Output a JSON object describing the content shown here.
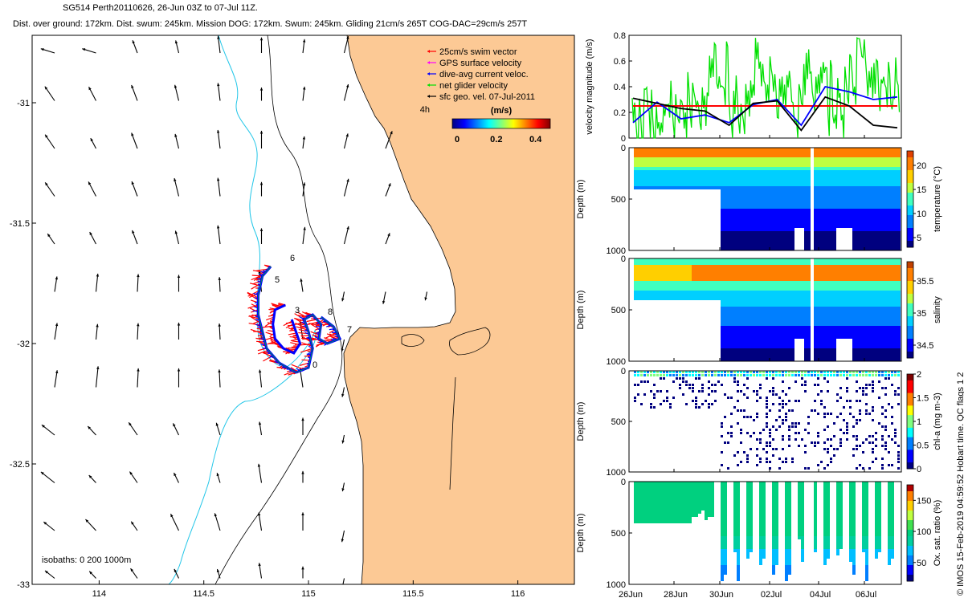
{
  "header": {
    "line1": "SG514 Perth20110626, 26-Jun 03Z to 07-Jul 11Z.",
    "line2": "Dist. over ground: 172km. Dist. swum: 245km. Mission DOG: 172km. Swum: 245km. Gliding 21cm/s 265T COG-DAC=29cm/s 257T"
  },
  "side_credit": "© IMOS 15-Feb-2019 04:59:52 Hobart time. QC flags 1  2",
  "colors": {
    "land": "#fcc995",
    "isobath_shallow": "#000000",
    "isobath_deep": "#22c6e8",
    "swim_vector": "#ff0000",
    "gps_velocity": "#ff00ff",
    "dive_avg": "#0000ff",
    "net_velocity": "#00e000",
    "sfc_geo": "#000000"
  },
  "chart_data": [
    {
      "type": "scatter",
      "panel": "track-map",
      "x_ticks": [
        "114",
        "114.5",
        "115",
        "115.5",
        "116"
      ],
      "y_ticks": [
        "-31",
        "-31.5",
        "-32",
        "-32.5",
        "-33"
      ],
      "xlim": [
        113.68,
        116.27
      ],
      "ylim": [
        -33.0,
        -30.72
      ],
      "legend": [
        {
          "label": "25cm/s swim vector",
          "color": "#ff0000"
        },
        {
          "label": "GPS surface velocity",
          "color": "#ff00ff"
        },
        {
          "label": "dive-avg current veloc.",
          "color": "#0000ff"
        },
        {
          "label": "net glider velocity",
          "color": "#00e000"
        },
        {
          "label": "sfc geo. vel. 07-Jul-2011",
          "color": "#000000"
        }
      ],
      "legend_placement": "top-right",
      "vector_scale_label": "4h",
      "colorbar": {
        "title": "(m/s)",
        "ticks": [
          "0",
          "0.2",
          "0.4"
        ],
        "range": [
          0,
          0.5
        ]
      },
      "isobaths_label": "isobaths: 0   200  1000m",
      "day_labels": [
        "6",
        "5",
        "3",
        "8",
        "7",
        "0"
      ],
      "track": [
        [
          114.82,
          -31.68
        ],
        [
          114.78,
          -31.72
        ],
        [
          114.76,
          -31.8
        ],
        [
          114.76,
          -31.88
        ],
        [
          114.78,
          -31.95
        ],
        [
          114.8,
          -32.02
        ],
        [
          114.86,
          -32.08
        ],
        [
          114.94,
          -32.12
        ],
        [
          115.0,
          -32.1
        ],
        [
          115.02,
          -32.02
        ],
        [
          115.0,
          -31.95
        ],
        [
          114.98,
          -31.9
        ],
        [
          115.02,
          -31.88
        ],
        [
          115.06,
          -31.92
        ],
        [
          115.05,
          -31.98
        ],
        [
          115.09,
          -32.0
        ],
        [
          115.15,
          -31.98
        ],
        [
          115.12,
          -31.93
        ],
        [
          115.06,
          -31.89
        ]
      ],
      "track_inner": [
        [
          114.89,
          -31.84
        ],
        [
          114.84,
          -31.86
        ],
        [
          114.83,
          -31.92
        ],
        [
          114.84,
          -31.98
        ],
        [
          114.88,
          -32.02
        ],
        [
          114.93,
          -32.04
        ],
        [
          114.96,
          -32.0
        ],
        [
          114.94,
          -31.95
        ],
        [
          114.92,
          -31.9
        ]
      ],
      "vectors": {
        "u_dominant": "northward-southward",
        "grid": "regular"
      }
    },
    {
      "type": "line",
      "panel": "velocity-magnitude",
      "ylabel": "velocity magnitude (m/s)",
      "ylim": [
        0,
        0.8
      ],
      "y_ticks": [
        "0",
        "0.2",
        "0.4",
        "0.6",
        "0.8"
      ],
      "x": [
        0,
        1,
        2,
        3,
        4,
        5,
        6,
        7,
        8,
        9,
        10,
        11
      ],
      "series": [
        {
          "color": "#ff0000",
          "values": [
            0.25,
            0.25,
            0.25,
            0.25,
            0.25,
            0.25,
            0.25,
            0.25,
            0.25,
            0.25,
            0.25,
            0.25
          ]
        },
        {
          "color": "#0000ff",
          "values": [
            0.12,
            0.28,
            0.15,
            0.18,
            0.12,
            0.26,
            0.3,
            0.1,
            0.4,
            0.36,
            0.3,
            0.32
          ]
        },
        {
          "color": "#000000",
          "values": [
            0.31,
            0.27,
            0.23,
            0.21,
            0.1,
            0.27,
            0.29,
            0.06,
            0.32,
            0.25,
            0.1,
            0.08
          ]
        },
        {
          "color": "#00e000",
          "values": [
            0.1,
            0.22,
            0.25,
            0.45,
            0.2,
            0.55,
            0.25,
            0.4,
            0.3,
            0.5,
            0.35,
            0.25
          ]
        }
      ]
    },
    {
      "type": "heatmap",
      "panel": "temperature",
      "ylabel": "Depth (m)",
      "clabel": "temperature (°C)",
      "y_ticks": [
        "0",
        "500",
        "1000"
      ],
      "c_ticks": [
        "5",
        "10",
        "15",
        "20"
      ],
      "crange": [
        3,
        23
      ]
    },
    {
      "type": "heatmap",
      "panel": "salinity",
      "ylabel": "Depth (m)",
      "clabel": "salinity",
      "y_ticks": [
        "0",
        "500",
        "1000"
      ],
      "c_ticks": [
        "34.5",
        "35",
        "35.5"
      ],
      "crange": [
        34.3,
        35.8
      ]
    },
    {
      "type": "scatter",
      "panel": "chlorophyll",
      "ylabel": "Depth (m)",
      "clabel": "chl-a (mg m-3)",
      "y_ticks": [
        "0",
        "500",
        "1000"
      ],
      "c_ticks": [
        "0",
        "0.5",
        "1",
        "1.5",
        "2"
      ],
      "crange": [
        0,
        2
      ]
    },
    {
      "type": "scatter",
      "panel": "oxygen",
      "ylabel": "Depth (m)",
      "clabel": "Ox. sat. ratio (%)",
      "y_ticks": [
        "0",
        "500",
        "1000"
      ],
      "c_ticks": [
        "50",
        "100",
        "150"
      ],
      "crange": [
        20,
        175
      ],
      "x_ticks": [
        "26Jun",
        "28Jun",
        "30Jun",
        "02Jul",
        "04Jul",
        "06Jul"
      ]
    }
  ]
}
